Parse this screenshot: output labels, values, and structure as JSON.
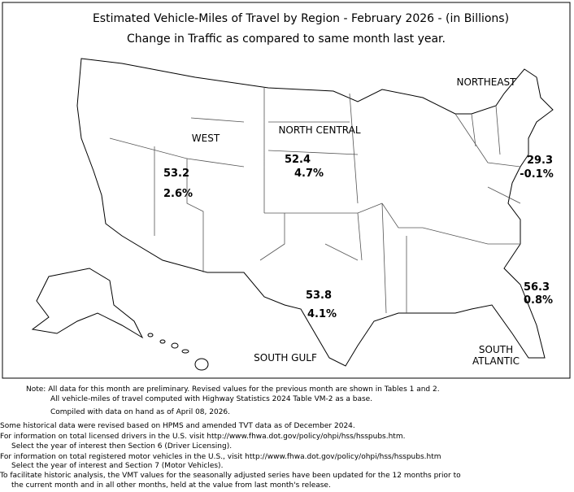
{
  "header": {
    "title": "Estimated Vehicle-Miles of Travel by Region - February 2026  - (in Billions)",
    "subtitle": "Change in Traffic as compared to same month last year."
  },
  "regions": [
    {
      "label": [
        "WEST"
      ],
      "vmt": 53.2,
      "change": "2.6%",
      "color": "#000000"
    },
    {
      "label": [
        "NORTH CENTRAL"
      ],
      "vmt": 52.4,
      "change": "4.7%",
      "color": "#000000"
    },
    {
      "label": [
        "NORTHEAST"
      ],
      "vmt": 29.3,
      "change": "-0.1%",
      "color": "#e00000"
    },
    {
      "label": [
        "SOUTH GULF"
      ],
      "vmt": 53.8,
      "change": "4.1%",
      "color": "#000000"
    },
    {
      "label": [
        "SOUTH",
        "ATLANTIC"
      ],
      "vmt": 56.3,
      "change": "0.8%",
      "color": "#000000"
    }
  ],
  "notes": [
    "Note: All data for this month are preliminary. Revised values for the previous month are shown in Tables 1 and 2.",
    "All vehicle-miles of travel computed with Highway Statistics 2024 Table VM-2 as a base.",
    "Compiled with data on hand as of April 08, 2026.",
    "Some historical data were revised based on HPMS and amended TVT data as of December 2024.",
    "For information on total licensed drivers in the U.S. visit http://www.fhwa.dot.gov/policy/ohpi/hss/hsspubs.htm.",
    "Select the year of interest then Section 6 (Driver Licensing).",
    "For information on total registered motor vehicles in the U.S., visit http://www.fhwa.dot.gov/policy/ohpi/hss/hsspubs.htm",
    "Select the year of interest and Section 7 (Motor Vehicles).",
    "To facilitate historic analysis, the VMT values for the seasonally adjusted series have been updated for the 12 months prior to",
    "the current month and in all other months, held at the value from last month's release."
  ]
}
